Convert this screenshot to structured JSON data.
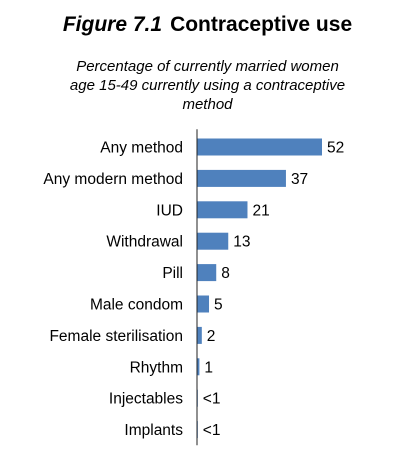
{
  "figure": {
    "number": "Figure 7.1",
    "title": "Contraceptive use",
    "subtitle_lines": [
      "Percentage of currently married women",
      "age 15-49 currently using a contraceptive",
      "method"
    ]
  },
  "colors": {
    "bar": "#4f81bd",
    "text": "#000000",
    "axis": "#222222"
  },
  "chart_data": {
    "type": "bar",
    "orientation": "horizontal",
    "title": "Figure 7.1 Contraceptive use",
    "subtitle": "Percentage of currently married women age 15-49 currently using a contraceptive method",
    "categories": [
      "Any method",
      "Any modern method",
      "IUD",
      "Withdrawal",
      "Pill",
      "Male condom",
      "Female sterilisation",
      "Rhythm",
      "Injectables",
      "Implants"
    ],
    "values": [
      52,
      37,
      21,
      13,
      8,
      5,
      2,
      1,
      0.3,
      0.3
    ],
    "value_labels": [
      "52",
      "37",
      "21",
      "13",
      "8",
      "5",
      "2",
      "1",
      "<1",
      "<1"
    ],
    "xlim": [
      0,
      60
    ],
    "grid": false,
    "legend": "none"
  }
}
